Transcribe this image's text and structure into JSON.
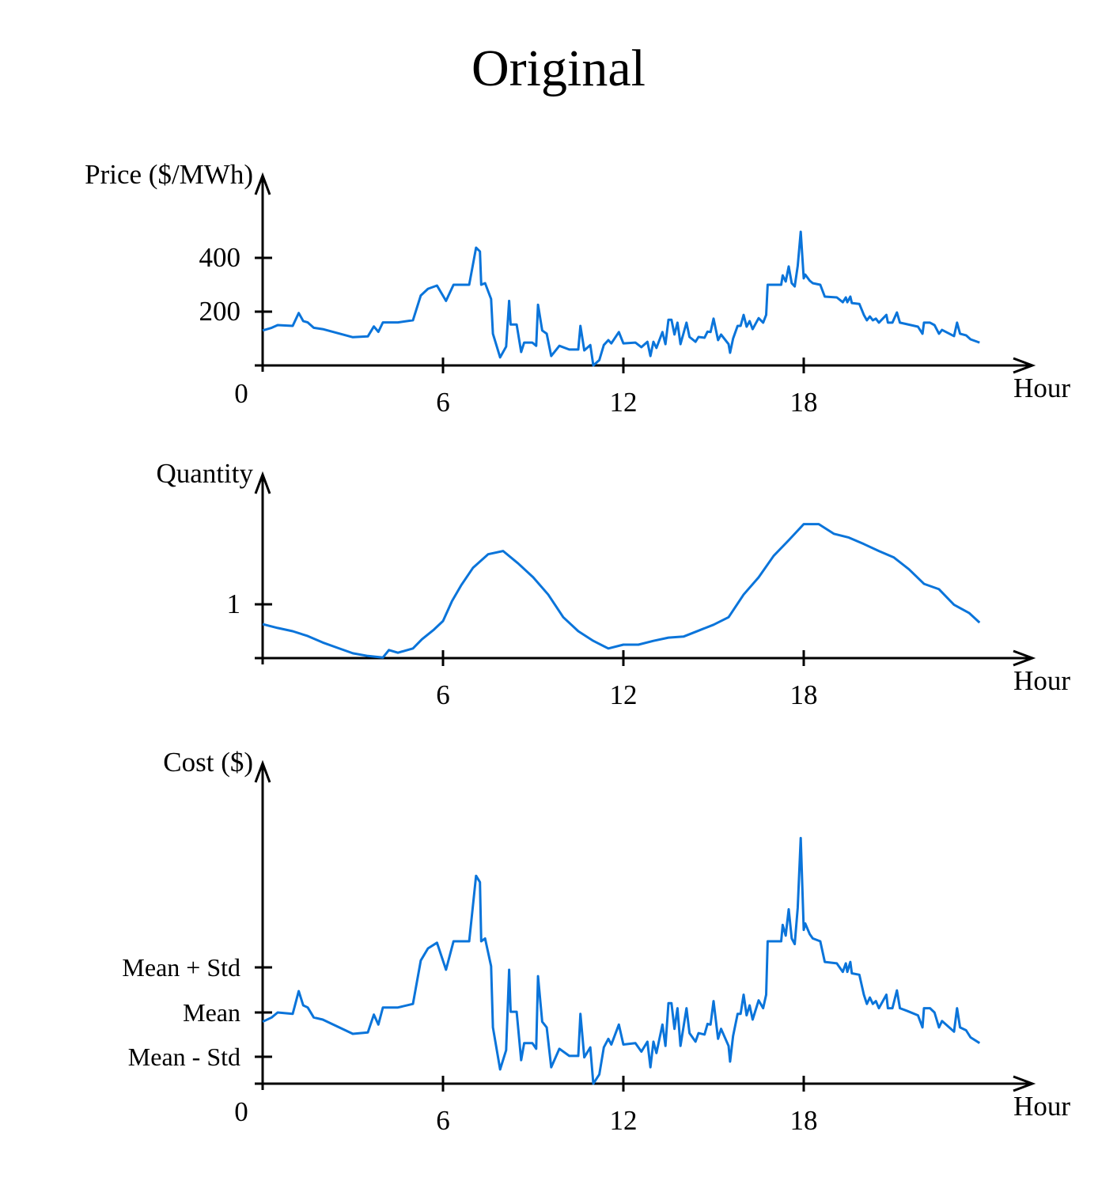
{
  "title": "Original",
  "colors": {
    "line": "#0a74da",
    "axis": "#000000"
  },
  "chart_data": [
    {
      "type": "line",
      "ylabel": "Price ($/MWh)",
      "xlabel": "Hour",
      "xticks": [
        6,
        12,
        18
      ],
      "xticklabels": [
        "6",
        "12",
        "18"
      ],
      "origin_label": "0",
      "yticks": [
        200,
        400
      ],
      "yticklabels": [
        "200",
        "400"
      ],
      "xlim": [
        0,
        25.5
      ],
      "ylim": [
        0,
        706
      ],
      "grid": false,
      "x": [
        0,
        0.3,
        0.5,
        1,
        1.2,
        1.35,
        1.5,
        1.7,
        2,
        2.5,
        3,
        3.5,
        3.7,
        3.85,
        4,
        4.5,
        5,
        5.26,
        5.5,
        5.8,
        6.1,
        6.35,
        6.87,
        7.1,
        7.23,
        7.27,
        7.4,
        7.6,
        7.66,
        7.9,
        8.1,
        8.2,
        8.25,
        8.45,
        8.6,
        8.7,
        8.97,
        9.1,
        9.16,
        9.3,
        9.45,
        9.6,
        9.87,
        10.2,
        10.5,
        10.57,
        10.7,
        10.9,
        11,
        11.2,
        11.35,
        11.5,
        11.6,
        11.85,
        12,
        12.4,
        12.6,
        12.8,
        12.9,
        13,
        13.1,
        13.3,
        13.4,
        13.5,
        13.6,
        13.7,
        13.8,
        13.9,
        14.1,
        14.2,
        14.4,
        14.5,
        14.7,
        14.8,
        14.9,
        15,
        15.15,
        15.25,
        15.5,
        15.55,
        15.65,
        15.8,
        15.9,
        16,
        16.1,
        16.2,
        16.3,
        16.5,
        16.65,
        16.75,
        16.8,
        17.25,
        17.3,
        17.4,
        17.5,
        17.6,
        17.7,
        17.8,
        17.9,
        18,
        18.05,
        18.2,
        18.3,
        18.55,
        18.7,
        19.1,
        19.3,
        19.4,
        19.45,
        19.55,
        19.6,
        19.85,
        20,
        20.1,
        20.2,
        20.3,
        20.4,
        20.5,
        20.75,
        20.8,
        20.95,
        21.1,
        21.2,
        21.45,
        21.8,
        21.95,
        22,
        22.2,
        22.35,
        22.5,
        22.6,
        23,
        23.1,
        23.2,
        23.4,
        23.55,
        23.85
      ],
      "values": [
        130,
        140,
        150,
        147,
        195,
        165,
        160,
        140,
        135,
        120,
        105,
        108,
        145,
        125,
        160,
        160,
        168,
        260,
        285,
        297,
        240,
        300,
        300,
        438,
        424,
        300,
        306,
        247,
        118,
        30,
        70,
        240,
        152,
        152,
        50,
        85,
        85,
        73,
        226,
        130,
        118,
        35,
        73,
        59,
        59,
        147,
        56,
        76,
        0,
        20,
        76,
        94,
        82,
        124,
        82,
        85,
        68,
        88,
        35,
        88,
        65,
        124,
        79,
        170,
        170,
        115,
        159,
        79,
        159,
        106,
        88,
        106,
        103,
        126,
        124,
        174,
        94,
        115,
        79,
        47,
        100,
        147,
        147,
        188,
        144,
        165,
        135,
        176,
        159,
        188,
        300,
        300,
        335,
        312,
        368,
        306,
        294,
        370,
        497,
        324,
        338,
        315,
        306,
        300,
        256,
        253,
        235,
        253,
        235,
        256,
        232,
        229,
        188,
        168,
        182,
        168,
        174,
        159,
        188,
        159,
        159,
        197,
        159,
        153,
        144,
        118,
        159,
        159,
        150,
        118,
        132,
        109,
        159,
        118,
        112,
        97,
        85
      ]
    },
    {
      "type": "line",
      "ylabel": "Quantity",
      "xlabel": "Hour",
      "xticks": [
        6,
        12,
        18
      ],
      "xticklabels": [
        "6",
        "12",
        "18"
      ],
      "yticks": [
        1
      ],
      "yticklabels": [
        "1"
      ],
      "xlim": [
        0,
        25.5
      ],
      "ylim": [
        0,
        3.41
      ],
      "grid": false,
      "x": [
        0,
        0.5,
        1,
        1.5,
        2,
        2.5,
        3,
        3.5,
        4,
        4.2,
        4.5,
        5,
        5.3,
        5.7,
        6,
        6.3,
        6.6,
        7,
        7.5,
        8,
        8.5,
        9,
        9.5,
        10,
        10.5,
        11,
        11.5,
        12,
        12.5,
        13,
        13.5,
        14,
        14.5,
        15,
        15.5,
        16,
        16.5,
        17,
        17.5,
        18,
        18.5,
        19,
        19.5,
        20,
        20.5,
        21,
        21.5,
        22,
        22.5,
        23,
        23.5,
        23.85
      ],
      "values": [
        0.63,
        0.56,
        0.5,
        0.41,
        0.29,
        0.19,
        0.09,
        0.04,
        0.01,
        0.15,
        0.1,
        0.18,
        0.35,
        0.53,
        0.69,
        1.06,
        1.35,
        1.68,
        1.93,
        1.99,
        1.76,
        1.5,
        1.18,
        0.76,
        0.5,
        0.32,
        0.18,
        0.25,
        0.25,
        0.32,
        0.38,
        0.4,
        0.51,
        0.62,
        0.76,
        1.18,
        1.5,
        1.9,
        2.19,
        2.49,
        2.49,
        2.31,
        2.24,
        2.12,
        1.99,
        1.87,
        1.65,
        1.38,
        1.28,
        0.99,
        0.84,
        0.66
      ]
    },
    {
      "type": "line",
      "ylabel": "Cost ($)",
      "xlabel": "Hour",
      "xticks": [
        6,
        12,
        18
      ],
      "xticklabels": [
        "6",
        "12",
        "18"
      ],
      "origin_label": "0",
      "yticks": [
        0.378,
        1,
        1.633
      ],
      "yticklabels": [
        "Mean - Std",
        "Mean",
        "Mean + Std"
      ],
      "xlim": [
        0,
        25.5
      ],
      "ylim": [
        0,
        4.5
      ],
      "grid": false,
      "x_same_as": "price",
      "values": [
        0.87,
        0.93,
        1.0,
        0.98,
        1.3,
        1.1,
        1.07,
        0.93,
        0.9,
        0.8,
        0.7,
        0.72,
        0.97,
        0.83,
        1.07,
        1.07,
        1.12,
        1.73,
        1.9,
        1.98,
        1.6,
        2.0,
        2.0,
        2.92,
        2.83,
        2.0,
        2.04,
        1.65,
        0.79,
        0.2,
        0.47,
        1.6,
        1.01,
        1.01,
        0.33,
        0.57,
        0.57,
        0.49,
        1.51,
        0.87,
        0.79,
        0.23,
        0.49,
        0.39,
        0.39,
        0.98,
        0.37,
        0.51,
        0,
        0.13,
        0.51,
        0.63,
        0.55,
        0.83,
        0.55,
        0.57,
        0.45,
        0.59,
        0.23,
        0.59,
        0.43,
        0.83,
        0.53,
        1.13,
        1.13,
        0.77,
        1.06,
        0.53,
        1.06,
        0.71,
        0.59,
        0.71,
        0.69,
        0.84,
        0.83,
        1.16,
        0.63,
        0.77,
        0.53,
        0.31,
        0.67,
        0.98,
        0.98,
        1.25,
        0.96,
        1.1,
        0.9,
        1.17,
        1.06,
        1.25,
        2.0,
        2.0,
        2.23,
        2.08,
        2.45,
        2.04,
        1.96,
        2.47,
        3.45,
        2.16,
        2.25,
        2.1,
        2.04,
        2.0,
        1.71,
        1.69,
        1.57,
        1.69,
        1.57,
        1.71,
        1.55,
        1.53,
        1.25,
        1.12,
        1.21,
        1.12,
        1.16,
        1.06,
        1.25,
        1.06,
        1.06,
        1.31,
        1.06,
        1.02,
        0.96,
        0.79,
        1.06,
        1.06,
        1.0,
        0.79,
        0.88,
        0.73,
        1.06,
        0.79,
        0.75,
        0.65,
        0.57
      ]
    }
  ]
}
